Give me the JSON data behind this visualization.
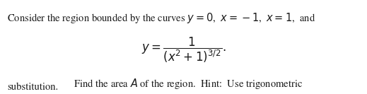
{
  "line1_left": "Consider the region bounded by the curves ",
  "line1_math": "$y = 0$,  $x = -1$,  $x = 1$,  and",
  "line2": "$y = \\dfrac{1}{(x^2 + 1)^{3/2}}.$",
  "line3": "Find the area $A$ of the region.  Hint:  Use trigonometric",
  "line4": "substitution.",
  "bg_color": "#ffffff",
  "text_color": "#1a1a1a",
  "fontsize": 10.5,
  "fig_width": 5.19,
  "fig_height": 1.33,
  "dpi": 100
}
